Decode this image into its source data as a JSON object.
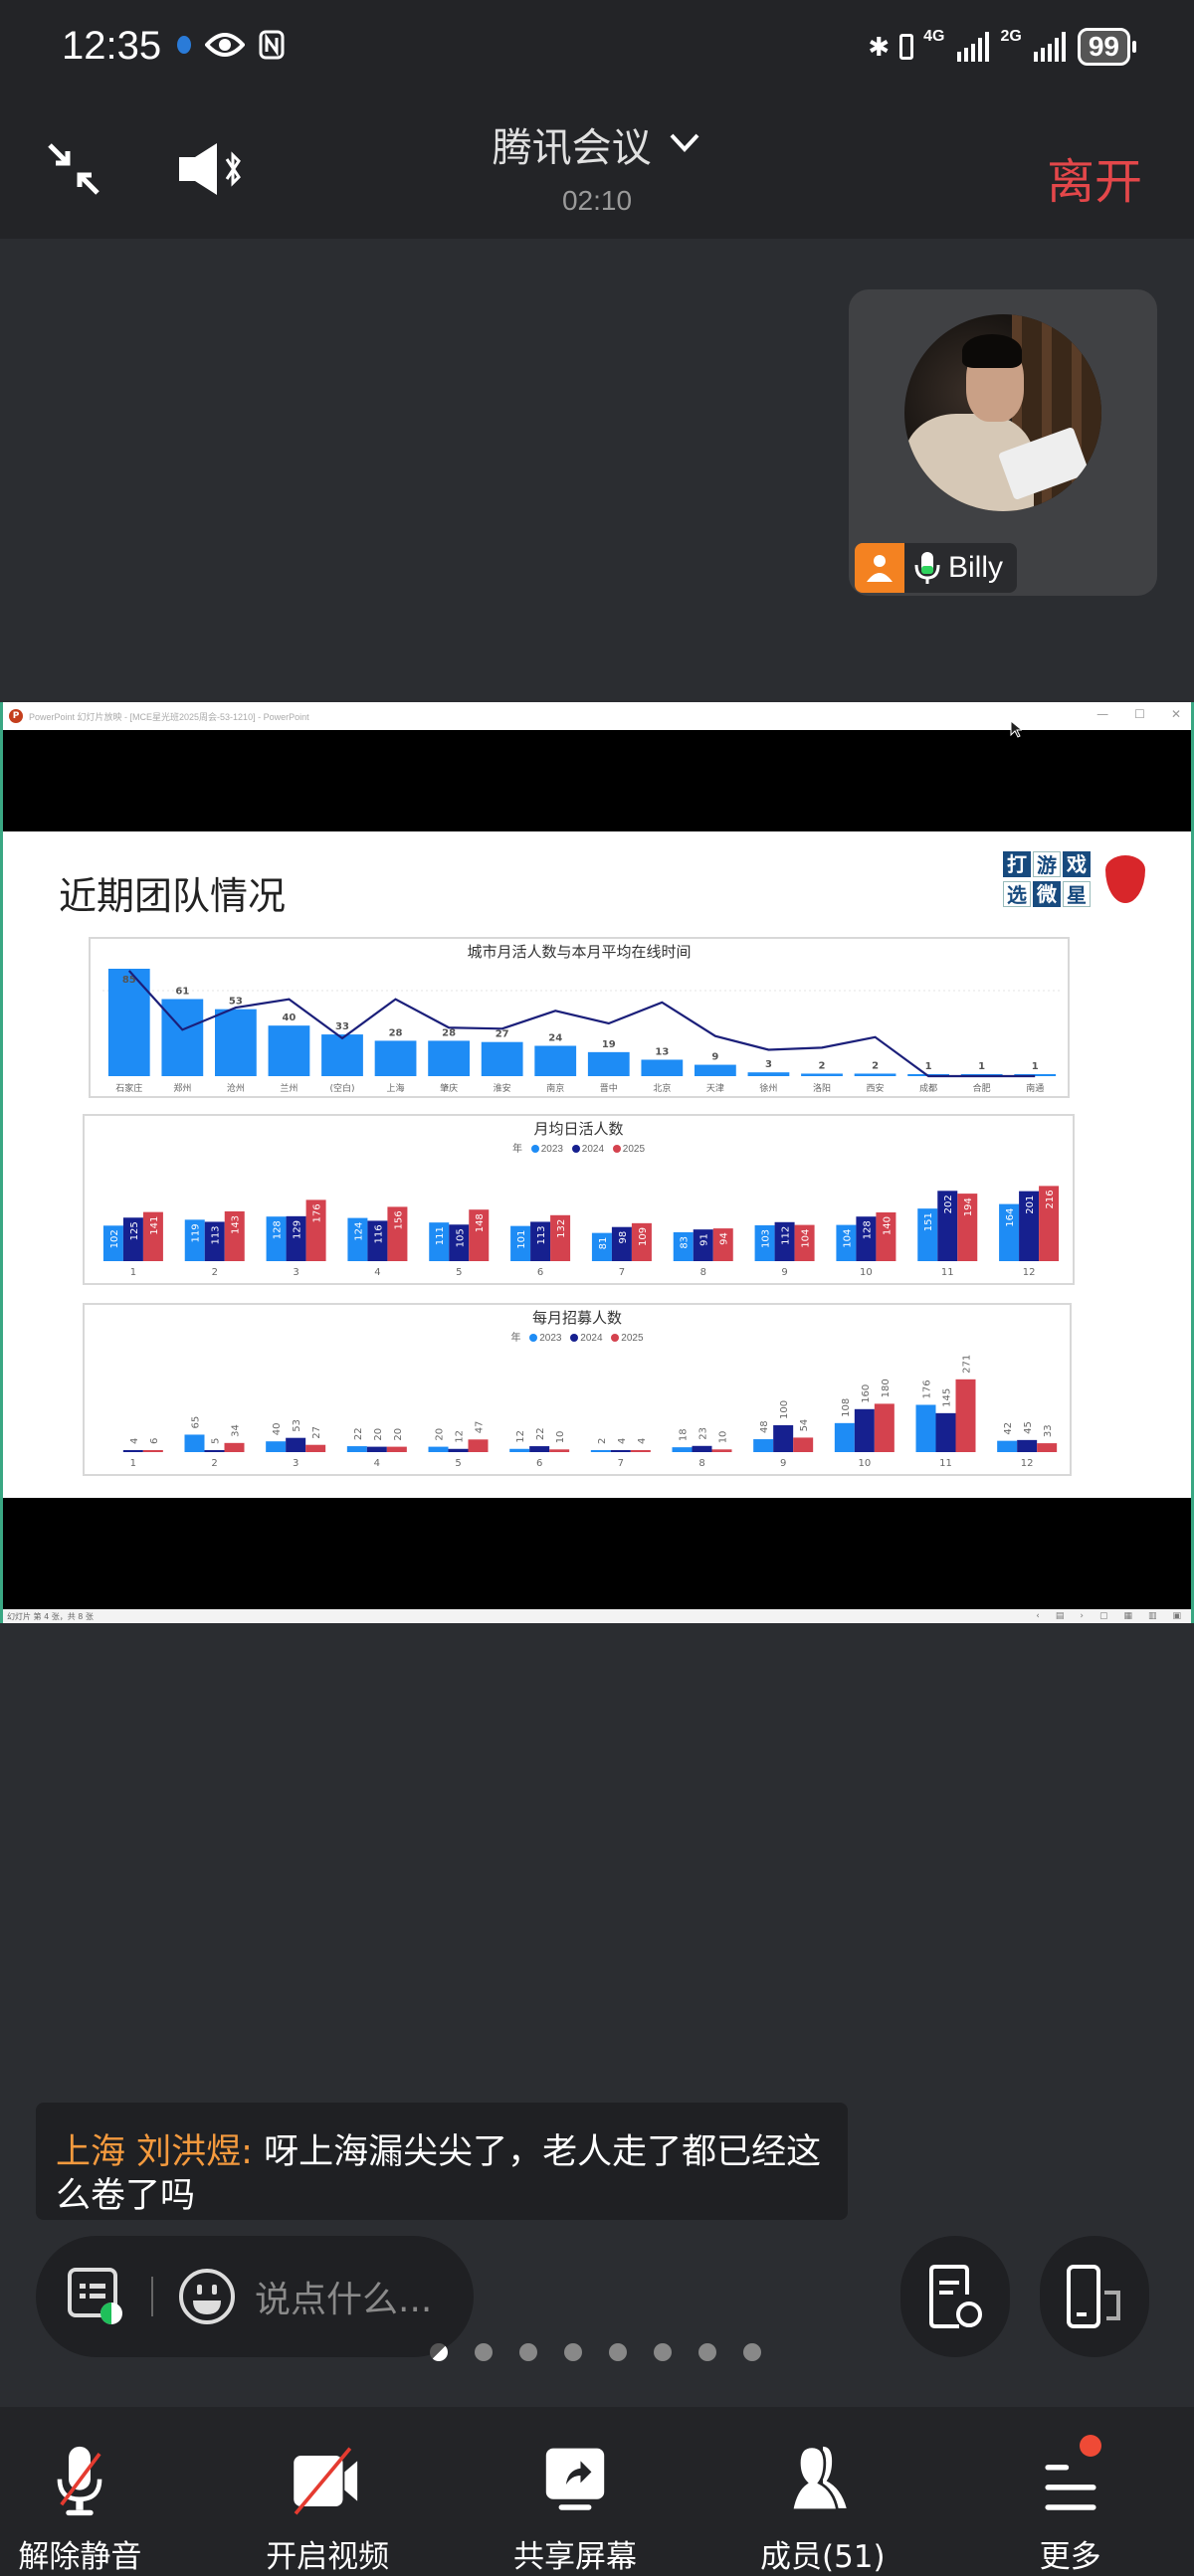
{
  "status_bar": {
    "time": "12:35",
    "left_icons": [
      "app-notification-icon",
      "eye-icon",
      "nfc-icon"
    ],
    "network_1": "4G",
    "network_2": "2G",
    "battery": "99"
  },
  "header": {
    "title": "腾讯会议",
    "elapsed": "02:10",
    "leave_label": "离开",
    "leave_color": "#e4474a"
  },
  "participant": {
    "name": "Billy",
    "role_color": "#f48221"
  },
  "ppt_window": {
    "title": "PowerPoint 幻灯片放映 - [MCE星光班2025周会-53-1210] - PowerPoint",
    "status_text": "幻灯片 第 4 张，共 8 张",
    "slide": {
      "title": "近期团队情况",
      "brand_chars": [
        "打",
        "游",
        "戏",
        "选",
        "微",
        "星"
      ]
    }
  },
  "chart_data": [
    {
      "type": "bar",
      "title": "城市月活人数与本月平均在线时间",
      "categories": [
        "石家庄",
        "郑州",
        "沧州",
        "兰州",
        "(空白)",
        "上海",
        "肇庆",
        "淮安",
        "南京",
        "晋中",
        "北京",
        "天津",
        "徐州",
        "洛阳",
        "西安",
        "成都",
        "合肥",
        "南通"
      ],
      "series": [
        {
          "name": "月活人数",
          "type": "bar",
          "color": "#1e8cf5",
          "values": [
            85,
            61,
            53,
            40,
            33,
            28,
            28,
            27,
            24,
            19,
            13,
            9,
            3,
            2,
            2,
            1,
            1,
            1
          ]
        },
        {
          "name": "本月平均在线时间",
          "type": "line",
          "color": "#1b1f7a",
          "relative_heights": [
            1.0,
            0.44,
            0.65,
            0.73,
            0.36,
            0.73,
            0.46,
            0.45,
            0.62,
            0.5,
            0.7,
            0.38,
            0.25,
            0.27,
            0.37,
            0.0,
            0.0,
            0.0
          ]
        }
      ],
      "xlabel": "",
      "ylabel": "",
      "grid": false,
      "legend": "none"
    },
    {
      "type": "bar",
      "title": "月均日活人数",
      "legend_title": "年",
      "categories": [
        "1",
        "2",
        "3",
        "4",
        "5",
        "6",
        "7",
        "8",
        "9",
        "10",
        "11",
        "12"
      ],
      "series": [
        {
          "name": "2023",
          "color": "#1e8cf5",
          "values": [
            102,
            119,
            128,
            124,
            111,
            101,
            81,
            83,
            103,
            104,
            151,
            164
          ]
        },
        {
          "name": "2024",
          "color": "#16208f",
          "values": [
            125,
            113,
            129,
            116,
            105,
            113,
            98,
            91,
            112,
            128,
            202,
            201
          ]
        },
        {
          "name": "2025",
          "color": "#d4424e",
          "values": [
            141,
            143,
            176,
            156,
            148,
            132,
            109,
            94,
            104,
            140,
            194,
            216
          ]
        }
      ],
      "legend_position": "top",
      "grid": false
    },
    {
      "type": "bar",
      "title": "每月招募人数",
      "legend_title": "年",
      "categories": [
        "1",
        "2",
        "3",
        "4",
        "5",
        "6",
        "7",
        "8",
        "9",
        "10",
        "11",
        "12"
      ],
      "series": [
        {
          "name": "2023",
          "color": "#1e8cf5",
          "values": [
            null,
            65,
            40,
            22,
            20,
            12,
            2,
            18,
            48,
            108,
            176,
            42
          ]
        },
        {
          "name": "2024",
          "color": "#16208f",
          "values": [
            4,
            5,
            53,
            20,
            12,
            22,
            4,
            23,
            100,
            160,
            145,
            45
          ]
        },
        {
          "name": "2025",
          "color": "#d4424e",
          "values": [
            6,
            34,
            27,
            20,
            47,
            10,
            4,
            10,
            54,
            180,
            271,
            33
          ]
        }
      ],
      "legend_position": "top",
      "grid": false
    }
  ],
  "chat": {
    "sender": "上海 刘洪煜:",
    "message": "呀上海漏尖尖了，老人走了都已经这么卷了吗",
    "sender_color": "#f49a3e"
  },
  "input": {
    "placeholder": "说点什么..."
  },
  "page_dots": {
    "count": 8,
    "active": 0
  },
  "toolbar": {
    "items": [
      {
        "label": "解除静音",
        "icon": "mic-off-icon"
      },
      {
        "label": "开启视频",
        "icon": "video-off-icon"
      },
      {
        "label": "共享屏幕",
        "icon": "share-screen-icon"
      },
      {
        "label": "成员(51)",
        "icon": "members-icon"
      },
      {
        "label": "更多",
        "icon": "more-menu-icon"
      }
    ]
  }
}
